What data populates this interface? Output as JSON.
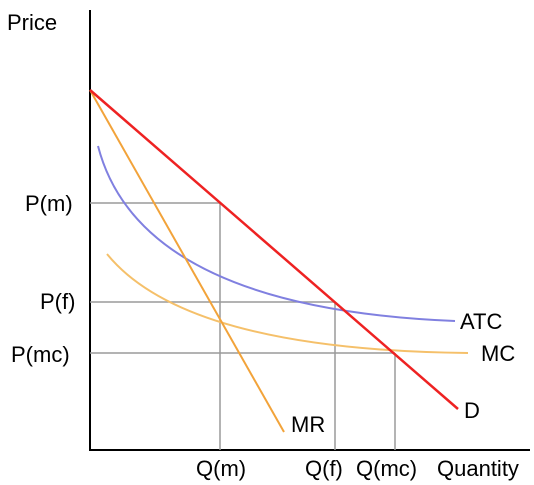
{
  "colors": {
    "demand": "#ee2222",
    "marginal_revenue": "#f2a33a",
    "marginal_cost": "#f5c06a",
    "average_total_cost": "#8080e0",
    "guides": "#9a9a9a",
    "axes": "#000000"
  },
  "axes": {
    "y_label": "Price",
    "x_label": "Quantity"
  },
  "price_labels": {
    "monopoly": "P(m)",
    "fair_return": "P(f)",
    "marginal_cost": "P(mc)"
  },
  "quantity_labels": {
    "monopoly": "Q(m)",
    "fair_return": "Q(f)",
    "marginal_cost": "Q(mc)"
  },
  "curve_labels": {
    "atc": "ATC",
    "mc": "MC",
    "mr": "MR",
    "demand": "D"
  }
}
